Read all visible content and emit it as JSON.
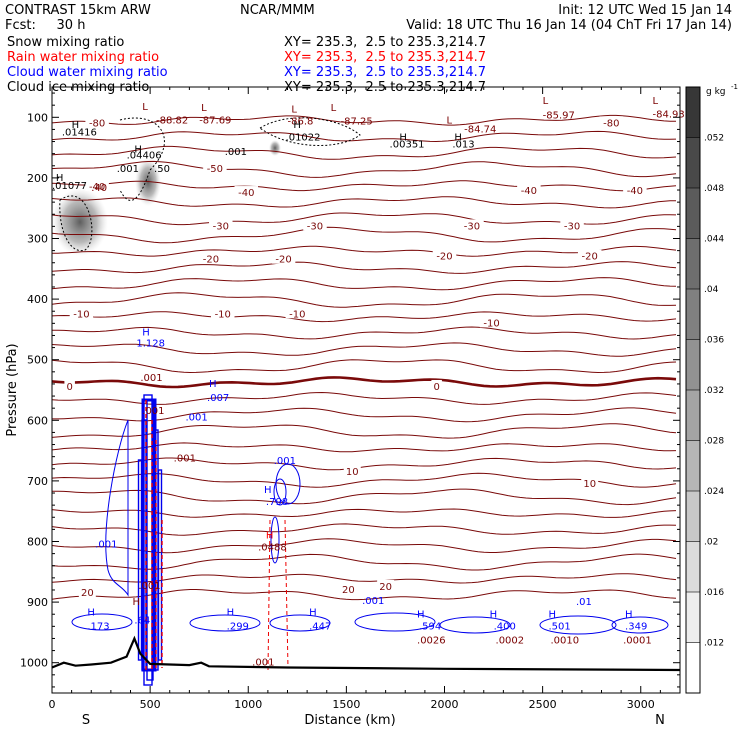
{
  "header": {
    "left1": "CONTRAST 15km ARW",
    "left2": "Fcst:     30 h",
    "center1": "NCAR/MMM",
    "right1": "Init: 12 UTC Wed 15 Jan 14",
    "right2": "Valid: 18 UTC Thu 16 Jan 14 (04 ChT Fri 17 Jan 14)"
  },
  "fields": [
    {
      "label": "Snow mixing ratio",
      "xy": "XY= 235.3,  2.5 to 235.3,214.7",
      "color": "#000000"
    },
    {
      "label": "Rain water mixing ratio",
      "xy": "XY= 235.3,  2.5 to 235.3,214.7",
      "color": "#ff0000"
    },
    {
      "label": "Cloud water mixing ratio",
      "xy": "XY= 235.3,  2.5 to 235.3,214.7",
      "color": "#0000ff"
    },
    {
      "label": "Cloud ice mixing ratio",
      "xy": "XY= 235.3,  2.5 to 235.3,214.7",
      "color": "#000000"
    }
  ],
  "chart_data": {
    "type": "contour",
    "xlabel": "Distance (km)",
    "ylabel": "Pressure (hPa)",
    "x_ticks": [
      0,
      500,
      1000,
      1500,
      2000,
      2500,
      3000
    ],
    "y_ticks": [
      100,
      200,
      300,
      400,
      500,
      600,
      700,
      800,
      900,
      1000
    ],
    "xlim": [
      0,
      3200
    ],
    "ylim": [
      1050,
      50
    ],
    "end_labels": {
      "left": "S",
      "right": "N"
    },
    "colorbar": {
      "unit": "g kg",
      "unit_exp": "-1",
      "ticks": [
        ".052",
        ".048",
        ".044",
        ".04",
        ".036",
        ".032",
        ".028",
        ".024",
        ".02",
        ".016",
        ".012"
      ]
    },
    "temperature_labels": [
      {
        "text": "-80",
        "x": 230,
        "p": 110
      },
      {
        "text": "-80",
        "x": 2850,
        "p": 110
      },
      {
        "text": "-50",
        "x": 830,
        "p": 185
      },
      {
        "text": "-40",
        "x": 230,
        "p": 215
      },
      {
        "text": "-40",
        "x": 990,
        "p": 225
      },
      {
        "text": "-40",
        "x": 2430,
        "p": 222
      },
      {
        "text": "-40",
        "x": 2970,
        "p": 222
      },
      {
        "text": "-30",
        "x": 860,
        "p": 280
      },
      {
        "text": "-30",
        "x": 1340,
        "p": 280
      },
      {
        "text": "-30",
        "x": 2140,
        "p": 280
      },
      {
        "text": "-30",
        "x": 2650,
        "p": 280
      },
      {
        "text": "-20",
        "x": 810,
        "p": 335
      },
      {
        "text": "-20",
        "x": 1180,
        "p": 335
      },
      {
        "text": "-20",
        "x": 2000,
        "p": 330
      },
      {
        "text": "-20",
        "x": 2740,
        "p": 330
      },
      {
        "text": "-10",
        "x": 150,
        "p": 425
      },
      {
        "text": "-10",
        "x": 870,
        "p": 425
      },
      {
        "text": "-10",
        "x": 1250,
        "p": 425
      },
      {
        "text": "-10",
        "x": 2240,
        "p": 440
      },
      {
        "text": "0",
        "x": 90,
        "p": 545
      },
      {
        "text": "0",
        "x": 1960,
        "p": 545
      },
      {
        "text": "10",
        "x": 1530,
        "p": 685
      },
      {
        "text": "10",
        "x": 2740,
        "p": 705
      },
      {
        "text": "20",
        "x": 180,
        "p": 885
      },
      {
        "text": "20",
        "x": 1510,
        "p": 880
      },
      {
        "text": "20",
        "x": 1700,
        "p": 875
      }
    ],
    "extrema_labels": [
      {
        "text": "L",
        "x": 460,
        "p": 88,
        "color": "#7a0000"
      },
      {
        "text": "-88.82",
        "x": 530,
        "p": 110,
        "color": "#7a0000"
      },
      {
        "text": "L",
        "x": 760,
        "p": 90,
        "color": "#7a0000"
      },
      {
        "text": "-87.69",
        "x": 750,
        "p": 110,
        "color": "#7a0000"
      },
      {
        "text": "L",
        "x": 1220,
        "p": 92,
        "color": "#7a0000"
      },
      {
        "text": "-86.8",
        "x": 1200,
        "p": 112,
        "color": "#7a0000"
      },
      {
        "text": "L",
        "x": 1420,
        "p": 90,
        "color": "#7a0000"
      },
      {
        "text": "-87.25",
        "x": 1470,
        "p": 112,
        "color": "#7a0000"
      },
      {
        "text": "L",
        "x": 2010,
        "p": 110,
        "color": "#7a0000"
      },
      {
        "text": "-84.74",
        "x": 2100,
        "p": 125,
        "color": "#7a0000"
      },
      {
        "text": "L",
        "x": 2500,
        "p": 78,
        "color": "#7a0000"
      },
      {
        "text": "-85.97",
        "x": 2500,
        "p": 102,
        "color": "#7a0000"
      },
      {
        "text": "L",
        "x": 3060,
        "p": 78,
        "color": "#7a0000"
      },
      {
        "text": "-84.93",
        "x": 3060,
        "p": 100,
        "color": "#7a0000"
      },
      {
        "text": "H",
        "x": 100,
        "p": 118,
        "color": "#000000"
      },
      {
        "text": ".01416",
        "x": 50,
        "p": 130,
        "color": "#000000"
      },
      {
        "text": "H",
        "x": 420,
        "p": 158,
        "color": "#000000"
      },
      {
        "text": ".04406",
        "x": 380,
        "p": 168,
        "color": "#000000"
      },
      {
        "text": ".001",
        "x": 880,
        "p": 162,
        "color": "#000000"
      },
      {
        "text": "H",
        "x": 1230,
        "p": 118,
        "color": "#000000"
      },
      {
        "text": ".01022",
        "x": 1190,
        "p": 138,
        "color": "#000000"
      },
      {
        "text": "H",
        "x": 1770,
        "p": 138,
        "color": "#000000"
      },
      {
        "text": ".00351",
        "x": 1720,
        "p": 150,
        "color": "#000000"
      },
      {
        "text": "H",
        "x": 2050,
        "p": 138,
        "color": "#000000"
      },
      {
        "text": ".013",
        "x": 2040,
        "p": 150,
        "color": "#000000"
      },
      {
        "text": ".001",
        "x": 330,
        "p": 190,
        "color": "#000000"
      },
      {
        "text": ".50",
        "x": 520,
        "p": 190,
        "color": "#000000"
      },
      {
        "text": "H",
        "x": 20,
        "p": 205,
        "color": "#000000"
      },
      {
        "text": ".01077",
        "x": 0,
        "p": 218,
        "color": "#000000"
      },
      {
        "text": ".40",
        "x": 200,
        "p": 222,
        "color": "#7a0000"
      },
      {
        "text": "H",
        "x": 460,
        "p": 460,
        "color": "#0000ff"
      },
      {
        "text": "1.128",
        "x": 430,
        "p": 478,
        "color": "#0000ff"
      },
      {
        "text": ".001",
        "x": 450,
        "p": 535,
        "color": "#7a0000"
      },
      {
        "text": "H",
        "x": 800,
        "p": 545,
        "color": "#0000ff"
      },
      {
        "text": ".007",
        "x": 790,
        "p": 568,
        "color": "#0000ff"
      },
      {
        "text": ".001",
        "x": 460,
        "p": 590,
        "color": "#7a0000"
      },
      {
        "text": ".001",
        "x": 680,
        "p": 600,
        "color": "#0000ff"
      },
      {
        "text": ".001",
        "x": 620,
        "p": 668,
        "color": "#7a0000"
      },
      {
        "text": ".001",
        "x": 1130,
        "p": 672,
        "color": "#0000ff"
      },
      {
        "text": "H",
        "x": 1080,
        "p": 720,
        "color": "#0000ff"
      },
      {
        "text": ".798",
        "x": 1090,
        "p": 740,
        "color": "#0000ff"
      },
      {
        "text": "H",
        "x": 1090,
        "p": 795,
        "color": "#ff0000"
      },
      {
        "text": ".0488",
        "x": 1050,
        "p": 815,
        "color": "#7a0000"
      },
      {
        "text": ".001",
        "x": 220,
        "p": 810,
        "color": "#0000ff"
      },
      {
        "text": ".001",
        "x": 440,
        "p": 878,
        "color": "#7a0000"
      },
      {
        "text": "H",
        "x": 410,
        "p": 905,
        "color": "#7a0000"
      },
      {
        "text": "H",
        "x": 180,
        "p": 922,
        "color": "#0000ff"
      },
      {
        "text": ".173",
        "x": 180,
        "p": 945,
        "color": "#0000ff"
      },
      {
        "text": ".64",
        "x": 420,
        "p": 935,
        "color": "#0000ff"
      },
      {
        "text": "H",
        "x": 890,
        "p": 922,
        "color": "#0000ff"
      },
      {
        "text": ".299",
        "x": 890,
        "p": 945,
        "color": "#0000ff"
      },
      {
        "text": "H",
        "x": 1310,
        "p": 922,
        "color": "#0000ff"
      },
      {
        "text": ".447",
        "x": 1310,
        "p": 945,
        "color": "#0000ff"
      },
      {
        "text": ".001",
        "x": 1580,
        "p": 903,
        "color": "#0000ff"
      },
      {
        "text": "H",
        "x": 1860,
        "p": 925,
        "color": "#0000ff"
      },
      {
        "text": ".594",
        "x": 1870,
        "p": 945,
        "color": "#0000ff"
      },
      {
        "text": ".0026",
        "x": 1860,
        "p": 968,
        "color": "#7a0000"
      },
      {
        "text": "H",
        "x": 2230,
        "p": 925,
        "color": "#0000ff"
      },
      {
        "text": ".400",
        "x": 2250,
        "p": 945,
        "color": "#0000ff"
      },
      {
        "text": ".0002",
        "x": 2260,
        "p": 968,
        "color": "#7a0000"
      },
      {
        "text": "H",
        "x": 2530,
        "p": 925,
        "color": "#0000ff"
      },
      {
        "text": ".501",
        "x": 2530,
        "p": 945,
        "color": "#0000ff"
      },
      {
        "text": ".0010",
        "x": 2540,
        "p": 968,
        "color": "#7a0000"
      },
      {
        "text": ".01",
        "x": 2670,
        "p": 905,
        "color": "#0000ff"
      },
      {
        "text": "H",
        "x": 2920,
        "p": 925,
        "color": "#0000ff"
      },
      {
        "text": ".349",
        "x": 2920,
        "p": 945,
        "color": "#0000ff"
      },
      {
        "text": ".0001",
        "x": 2910,
        "p": 968,
        "color": "#7a0000"
      },
      {
        "text": ".001",
        "x": 1020,
        "p": 1005,
        "color": "#7a0000"
      }
    ]
  }
}
